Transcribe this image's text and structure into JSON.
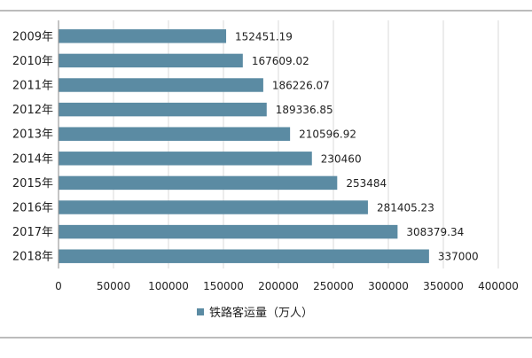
{
  "chart_data": {
    "type": "bar",
    "orientation": "horizontal",
    "categories": [
      "2009年",
      "2010年",
      "2011年",
      "2012年",
      "2013年",
      "2014年",
      "2015年",
      "2016年",
      "2017年",
      "2018年"
    ],
    "series": [
      {
        "name": "铁路客运量（万人）",
        "values": [
          152451.19,
          167609.02,
          186226.07,
          189336.85,
          210596.92,
          230460,
          253484,
          281405.23,
          308379.34,
          337000
        ],
        "labels": [
          "152451.19",
          "167609.02",
          "186226.07",
          "189336.85",
          "210596.92",
          "230460",
          "253484",
          "281405.23",
          "308379.34",
          "337000"
        ]
      }
    ],
    "x_ticks": [
      0,
      50000,
      100000,
      150000,
      200000,
      250000,
      300000,
      350000,
      400000
    ],
    "xlim": [
      0,
      400000
    ],
    "grid": true,
    "legend": "bottom",
    "colors": {
      "bar": "#5b8ba3",
      "grid": "#d9d9d9",
      "axis": "#888888",
      "text": "#222222"
    }
  }
}
